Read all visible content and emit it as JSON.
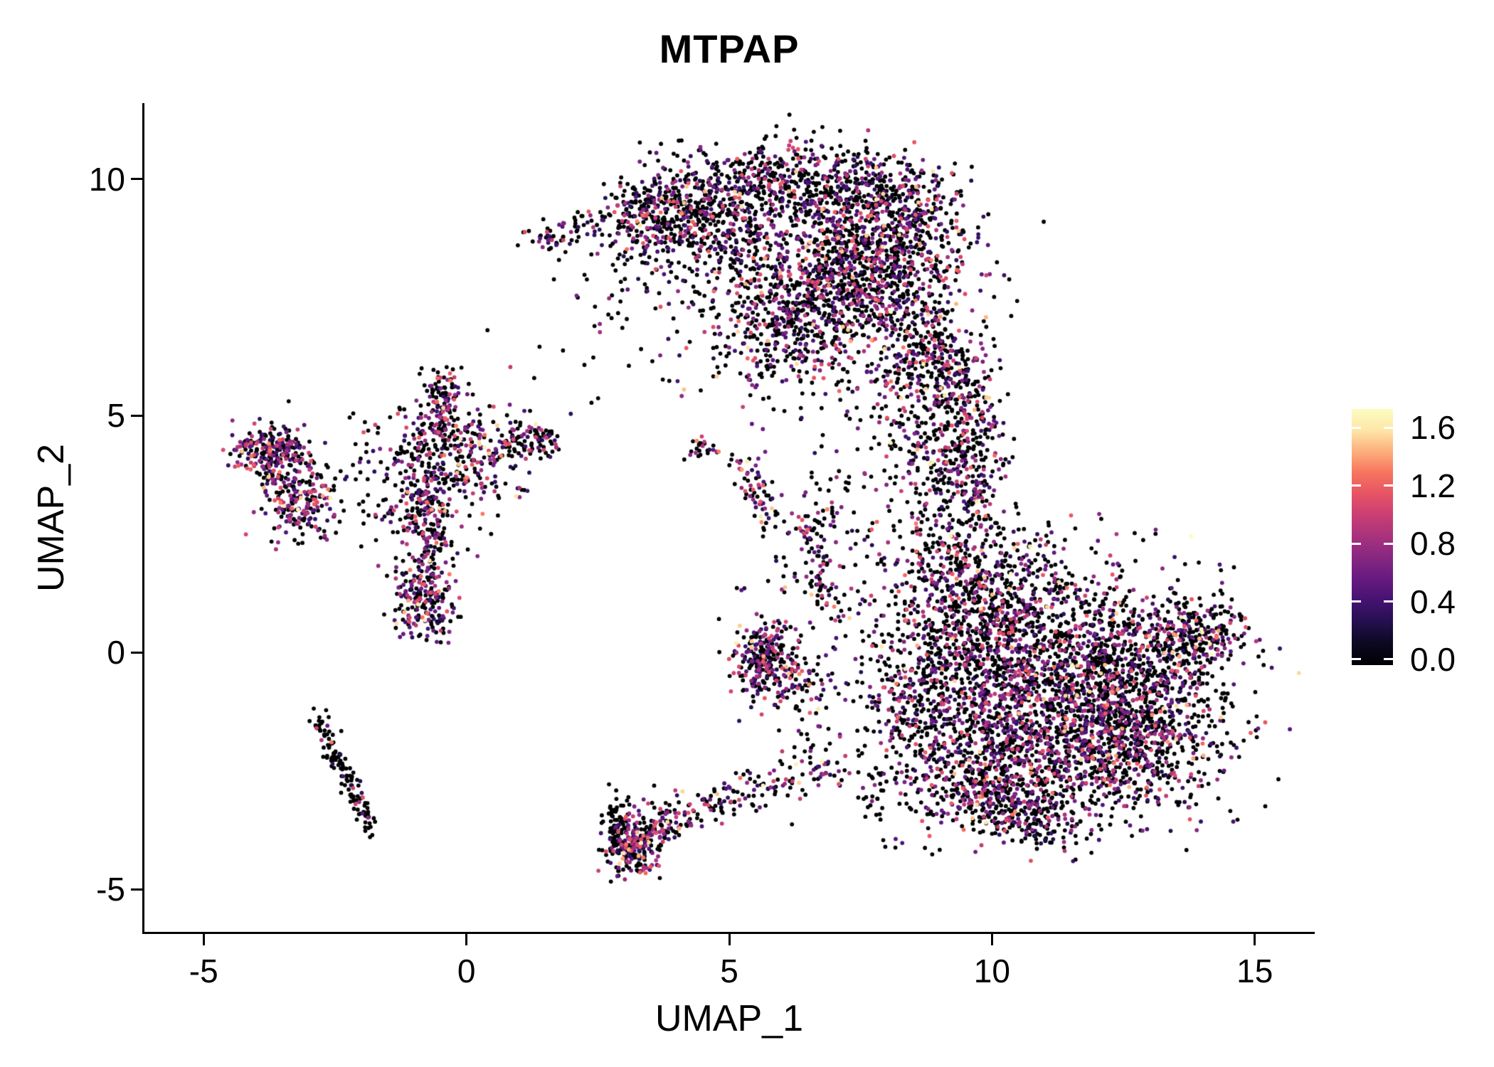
{
  "title": "MTPAP",
  "axes": {
    "x": {
      "label": "UMAP_1",
      "ticks": [
        {
          "value": -5,
          "label": "-5"
        },
        {
          "value": 0,
          "label": "0"
        },
        {
          "value": 5,
          "label": "5"
        },
        {
          "value": 10,
          "label": "10"
        },
        {
          "value": 15,
          "label": "15"
        }
      ]
    },
    "y": {
      "label": "UMAP_2",
      "ticks": [
        {
          "value": 10,
          "label": "10"
        },
        {
          "value": 5,
          "label": "5"
        },
        {
          "value": 0,
          "label": "0"
        },
        {
          "value": -5,
          "label": "-5"
        }
      ]
    }
  },
  "legend": {
    "bar_domain": [
      -0.04,
      1.73
    ],
    "ticks": [
      {
        "value": 1.6,
        "label": "1.6"
      },
      {
        "value": 1.2,
        "label": "1.2"
      },
      {
        "value": 0.8,
        "label": "0.8"
      },
      {
        "value": 0.4,
        "label": "0.4"
      },
      {
        "value": 0.0,
        "label": "0.0"
      }
    ]
  },
  "chart_data": {
    "type": "scatter",
    "title": "MTPAP",
    "xlabel": "UMAP_1",
    "ylabel": "UMAP_2",
    "xlim": [
      -6.1,
      16.1
    ],
    "ylim": [
      -5.9,
      11.6
    ],
    "grid": false,
    "legend_position": "right",
    "point_radius": 2.9,
    "seed": 1337,
    "color_scale": {
      "name": "magma",
      "domain": [
        0,
        1.65
      ],
      "stops": [
        [
          0.0,
          "#000004"
        ],
        [
          0.1,
          "#120d31"
        ],
        [
          0.2,
          "#331067"
        ],
        [
          0.3,
          "#59157e"
        ],
        [
          0.4,
          "#7e2482"
        ],
        [
          0.5,
          "#a3307e"
        ],
        [
          0.6,
          "#c83e73"
        ],
        [
          0.7,
          "#e95562"
        ],
        [
          0.8,
          "#f97b5d"
        ],
        [
          0.9,
          "#fec488"
        ],
        [
          1.0,
          "#fcfdbf"
        ]
      ]
    },
    "value_bands": [
      [
        0,
        0
      ],
      [
        0.22,
        0.78
      ],
      [
        0.78,
        1.18
      ],
      [
        1.18,
        1.65
      ]
    ],
    "expression_mixes": {
      "default": [
        0.62,
        0.25,
        0.1,
        0.03
      ],
      "dark": [
        0.87,
        0.09,
        0.03,
        0.01
      ],
      "colorful": [
        0.47,
        0.32,
        0.16,
        0.05
      ]
    },
    "clusters": [
      {
        "name": "top-tail",
        "shape": "strip",
        "from": [
          1.25,
          8.7
        ],
        "to": [
          3.1,
          9.25
        ],
        "w": 0.18,
        "n": 90
      },
      {
        "name": "top-left-clump",
        "shape": "blob",
        "c": [
          3.6,
          9.3
        ],
        "s": [
          0.45,
          0.45
        ],
        "n": 220
      },
      {
        "name": "top-band-left",
        "shape": "strip",
        "from": [
          4.0,
          9.5
        ],
        "to": [
          6.3,
          10.0
        ],
        "w": 0.45,
        "n": 430
      },
      {
        "name": "top-band-right",
        "shape": "strip",
        "from": [
          6.3,
          10.0
        ],
        "to": [
          8.9,
          9.3
        ],
        "w": 0.5,
        "n": 520
      },
      {
        "name": "top-main",
        "shape": "blob",
        "c": [
          7.6,
          8.25
        ],
        "s": [
          0.95,
          0.85
        ],
        "n": 950
      },
      {
        "name": "top-lower-mid",
        "shape": "blob",
        "c": [
          6.3,
          7.0
        ],
        "s": [
          0.75,
          0.75
        ],
        "n": 430
      },
      {
        "name": "top-lower-right",
        "shape": "blob",
        "c": [
          8.65,
          6.35
        ],
        "s": [
          0.55,
          0.75
        ],
        "n": 300
      },
      {
        "name": "top-left-mid",
        "shape": "blob",
        "c": [
          5.0,
          8.7
        ],
        "s": [
          0.75,
          0.55
        ],
        "n": 240
      },
      {
        "name": "top-sparse-fill",
        "shape": "blob",
        "c": [
          5.4,
          7.2
        ],
        "s": [
          1.2,
          1.0
        ],
        "n": 140
      },
      {
        "name": "top-left-sparse",
        "shape": "blob",
        "c": [
          3.4,
          7.9
        ],
        "s": [
          0.6,
          0.6
        ],
        "n": 40
      },
      {
        "name": "neck-band",
        "shape": "strip",
        "from": [
          9.35,
          6.1
        ],
        "to": [
          9.6,
          3.0
        ],
        "w": 0.4,
        "n": 340
      },
      {
        "name": "neck-blob",
        "shape": "blob",
        "c": [
          8.85,
          4.4
        ],
        "s": [
          0.55,
          0.95
        ],
        "n": 200
      },
      {
        "name": "neck-sparse",
        "shape": "blob",
        "c": [
          7.4,
          3.5
        ],
        "s": [
          0.75,
          1.1
        ],
        "n": 80
      },
      {
        "name": "right-core",
        "shape": "blob",
        "c": [
          11.3,
          -0.6
        ],
        "s": [
          1.45,
          1.15
        ],
        "n": 1650
      },
      {
        "name": "right-lower",
        "shape": "blob",
        "c": [
          12.6,
          -1.8
        ],
        "s": [
          0.95,
          0.85
        ],
        "n": 800
      },
      {
        "name": "right-upper",
        "shape": "blob",
        "c": [
          10.0,
          0.8
        ],
        "s": [
          0.85,
          0.85
        ],
        "n": 500
      },
      {
        "name": "right-lower-left",
        "shape": "blob",
        "c": [
          10.3,
          -2.4
        ],
        "s": [
          0.85,
          0.65
        ],
        "n": 450
      },
      {
        "name": "right-tip",
        "shape": "strip",
        "from": [
          13.7,
          0.25
        ],
        "to": [
          14.45,
          0.5
        ],
        "w": 0.3,
        "n": 130
      },
      {
        "name": "right-upper-right",
        "shape": "blob",
        "c": [
          13.2,
          0.2
        ],
        "s": [
          0.6,
          0.5
        ],
        "n": 220
      },
      {
        "name": "right-bottom-tail",
        "shape": "strip",
        "from": [
          9.2,
          -3.0
        ],
        "to": [
          11.4,
          -3.7
        ],
        "w": 0.3,
        "n": 260
      },
      {
        "name": "right-upper-left",
        "shape": "blob",
        "c": [
          9.3,
          1.9
        ],
        "s": [
          0.65,
          0.7
        ],
        "n": 250
      },
      {
        "name": "right-left-edge",
        "shape": "blob",
        "c": [
          9.0,
          -1.1
        ],
        "s": [
          0.65,
          0.95
        ],
        "n": 300
      },
      {
        "name": "mid-sparse-right",
        "shape": "blob",
        "c": [
          8.0,
          -0.8
        ],
        "s": [
          0.8,
          1.0
        ],
        "n": 110
      },
      {
        "name": "left-blob-top",
        "shape": "blob",
        "c": [
          -3.6,
          4.1
        ],
        "s": [
          0.42,
          0.33
        ],
        "n": 200,
        "mix": "colorful"
      },
      {
        "name": "left-blob-bottom",
        "shape": "blob",
        "c": [
          -3.15,
          3.15
        ],
        "s": [
          0.33,
          0.42
        ],
        "n": 190,
        "mix": "colorful"
      },
      {
        "name": "left-blob-arm",
        "shape": "strip",
        "from": [
          -4.25,
          4.35
        ],
        "to": [
          -3.4,
          4.6
        ],
        "w": 0.2,
        "n": 70
      },
      {
        "name": "center-branch-top",
        "shape": "strip",
        "from": [
          -0.45,
          5.8
        ],
        "to": [
          -0.6,
          4.6
        ],
        "w": 0.2,
        "n": 130
      },
      {
        "name": "center-main",
        "shape": "blob",
        "c": [
          -0.15,
          4.2
        ],
        "s": [
          0.75,
          0.5
        ],
        "n": 300,
        "mix": "colorful"
      },
      {
        "name": "center-arm-right",
        "shape": "strip",
        "from": [
          0.8,
          4.5
        ],
        "to": [
          1.7,
          4.5
        ],
        "w": 0.18,
        "n": 80
      },
      {
        "name": "center-branch-mid",
        "shape": "strip",
        "from": [
          -0.8,
          3.6
        ],
        "to": [
          -0.7,
          2.2
        ],
        "w": 0.25,
        "n": 170,
        "mix": "colorful"
      },
      {
        "name": "center-bottom-clump",
        "shape": "blob",
        "c": [
          -0.8,
          1.15
        ],
        "s": [
          0.28,
          0.45
        ],
        "n": 230,
        "mix": "colorful"
      },
      {
        "name": "center-sparse",
        "shape": "blob",
        "c": [
          -1.2,
          3.3
        ],
        "s": [
          0.85,
          0.9
        ],
        "n": 120
      },
      {
        "name": "small-streak",
        "shape": "strip",
        "from": [
          5.15,
          4.25
        ],
        "to": [
          5.9,
          2.7
        ],
        "w": 0.16,
        "n": 70,
        "mix": "colorful"
      },
      {
        "name": "small-dot",
        "shape": "blob",
        "c": [
          4.5,
          4.3
        ],
        "s": [
          0.22,
          0.13
        ],
        "n": 25
      },
      {
        "name": "mid-blob",
        "shape": "blob",
        "c": [
          5.65,
          -0.2
        ],
        "s": [
          0.33,
          0.42
        ],
        "n": 270,
        "mix": "colorful"
      },
      {
        "name": "mid-blob-side",
        "shape": "blob",
        "c": [
          6.3,
          -0.9
        ],
        "s": [
          0.38,
          0.55
        ],
        "n": 60
      },
      {
        "name": "mid-streak",
        "shape": "strip",
        "from": [
          6.6,
          2.9
        ],
        "to": [
          6.78,
          1.0
        ],
        "w": 0.18,
        "n": 70
      },
      {
        "name": "mid-streak-sparse",
        "shape": "blob",
        "c": [
          6.3,
          1.9
        ],
        "s": [
          0.5,
          0.75
        ],
        "n": 40
      },
      {
        "name": "line-upper",
        "shape": "strip",
        "from": [
          -2.85,
          -1.35
        ],
        "to": [
          -2.45,
          -2.3
        ],
        "w": 0.1,
        "n": 55,
        "mix": "dark"
      },
      {
        "name": "line-lower",
        "shape": "strip",
        "from": [
          -2.45,
          -2.3
        ],
        "to": [
          -1.95,
          -3.35
        ],
        "w": 0.1,
        "n": 55,
        "mix": "dark"
      },
      {
        "name": "line-tip",
        "shape": "strip",
        "from": [
          -1.95,
          -3.35
        ],
        "to": [
          -1.82,
          -3.85
        ],
        "w": 0.07,
        "n": 20,
        "mix": "dark"
      },
      {
        "name": "bottom-core",
        "shape": "blob",
        "c": [
          3.15,
          -4.05
        ],
        "s": [
          0.28,
          0.33
        ],
        "n": 240,
        "mix": "colorful"
      },
      {
        "name": "bottom-left-edge",
        "shape": "blob",
        "c": [
          2.85,
          -3.6
        ],
        "s": [
          0.13,
          0.28
        ],
        "n": 50,
        "mix": "dark"
      },
      {
        "name": "bottom-arm1",
        "shape": "strip",
        "from": [
          3.45,
          -3.7
        ],
        "to": [
          5.2,
          -3.0
        ],
        "w": 0.22,
        "n": 130
      },
      {
        "name": "bottom-arm2",
        "shape": "strip",
        "from": [
          5.2,
          -3.0
        ],
        "to": [
          7.1,
          -2.35
        ],
        "w": 0.22,
        "n": 85
      },
      {
        "name": "scatter-top-mid",
        "shape": "blob",
        "c": [
          4.6,
          6.3
        ],
        "s": [
          1.6,
          0.9
        ],
        "n": 25,
        "mix": "dark"
      },
      {
        "name": "scatter-left-top",
        "shape": "blob",
        "c": [
          2.3,
          7.6
        ],
        "s": [
          0.8,
          1.0
        ],
        "n": 15,
        "mix": "dark"
      },
      {
        "name": "scatter-mid",
        "shape": "blob",
        "c": [
          7.6,
          0.6
        ],
        "s": [
          0.9,
          1.1
        ],
        "n": 60
      },
      {
        "name": "scatter-bottom-mid",
        "shape": "blob",
        "c": [
          8.3,
          -2.6
        ],
        "s": [
          0.6,
          0.8
        ],
        "n": 70
      }
    ]
  }
}
